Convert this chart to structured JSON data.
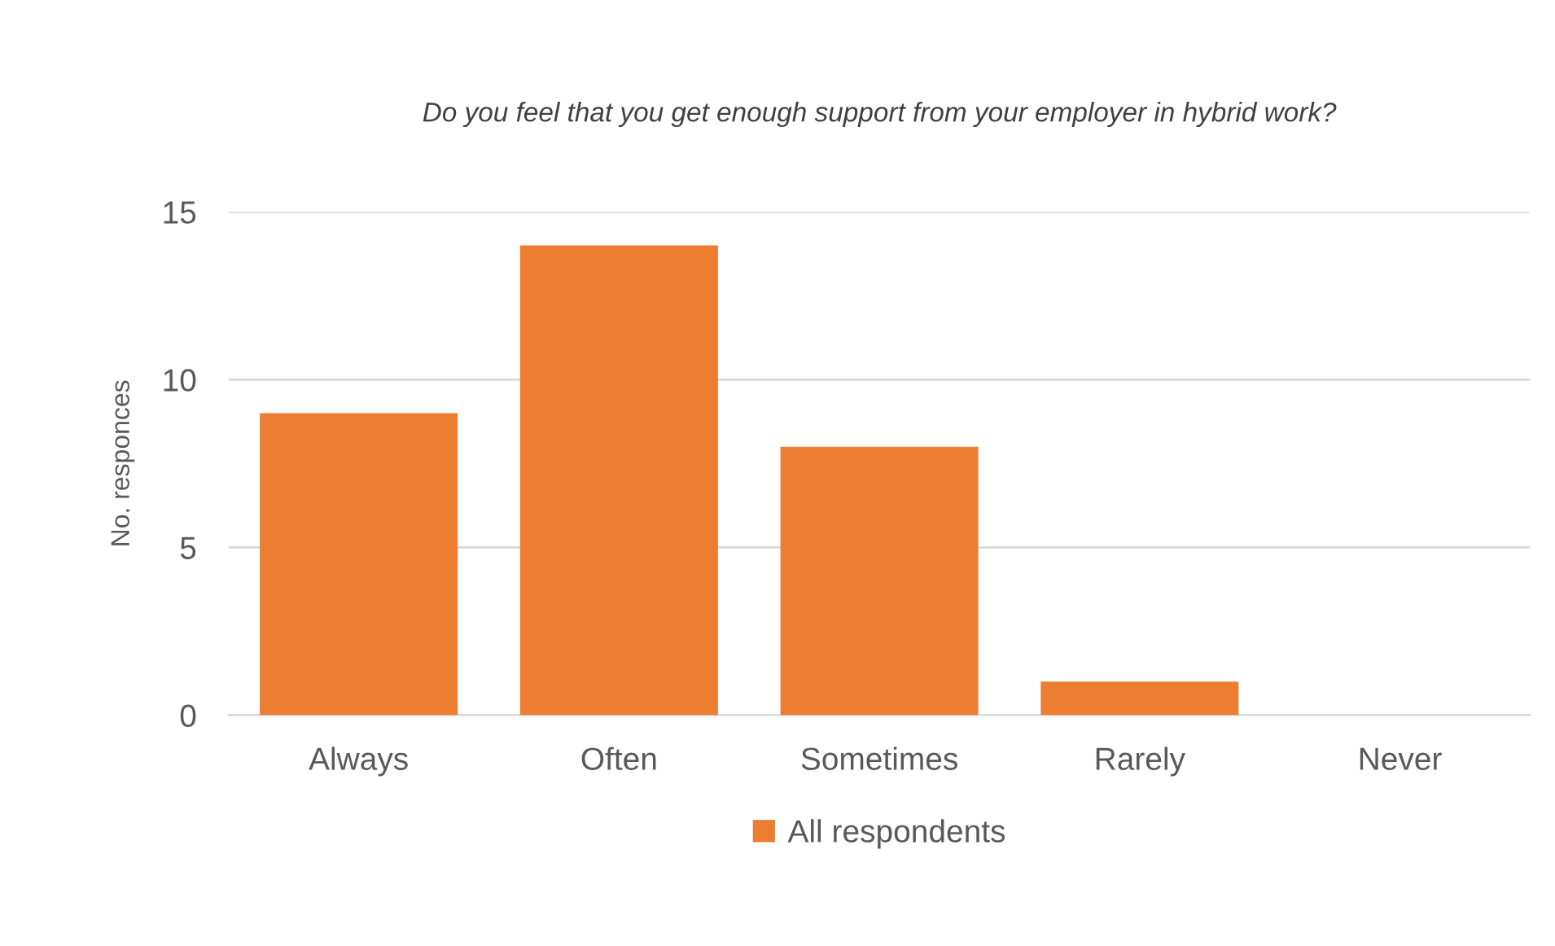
{
  "chart_data": {
    "type": "bar",
    "title": "Do you feel that you get enough support from your employer in hybrid work?",
    "ylabel": "No. responces",
    "categories": [
      "Always",
      "Often",
      "Sometimes",
      "Rarely",
      "Never"
    ],
    "series": [
      {
        "name": "All respondents",
        "color": "#ed7d31",
        "values": [
          9,
          14,
          8,
          1,
          0
        ]
      }
    ],
    "ylim": [
      0,
      15
    ],
    "yticks": [
      0,
      5,
      10,
      15
    ],
    "grid": "y",
    "legend": "bottom"
  }
}
